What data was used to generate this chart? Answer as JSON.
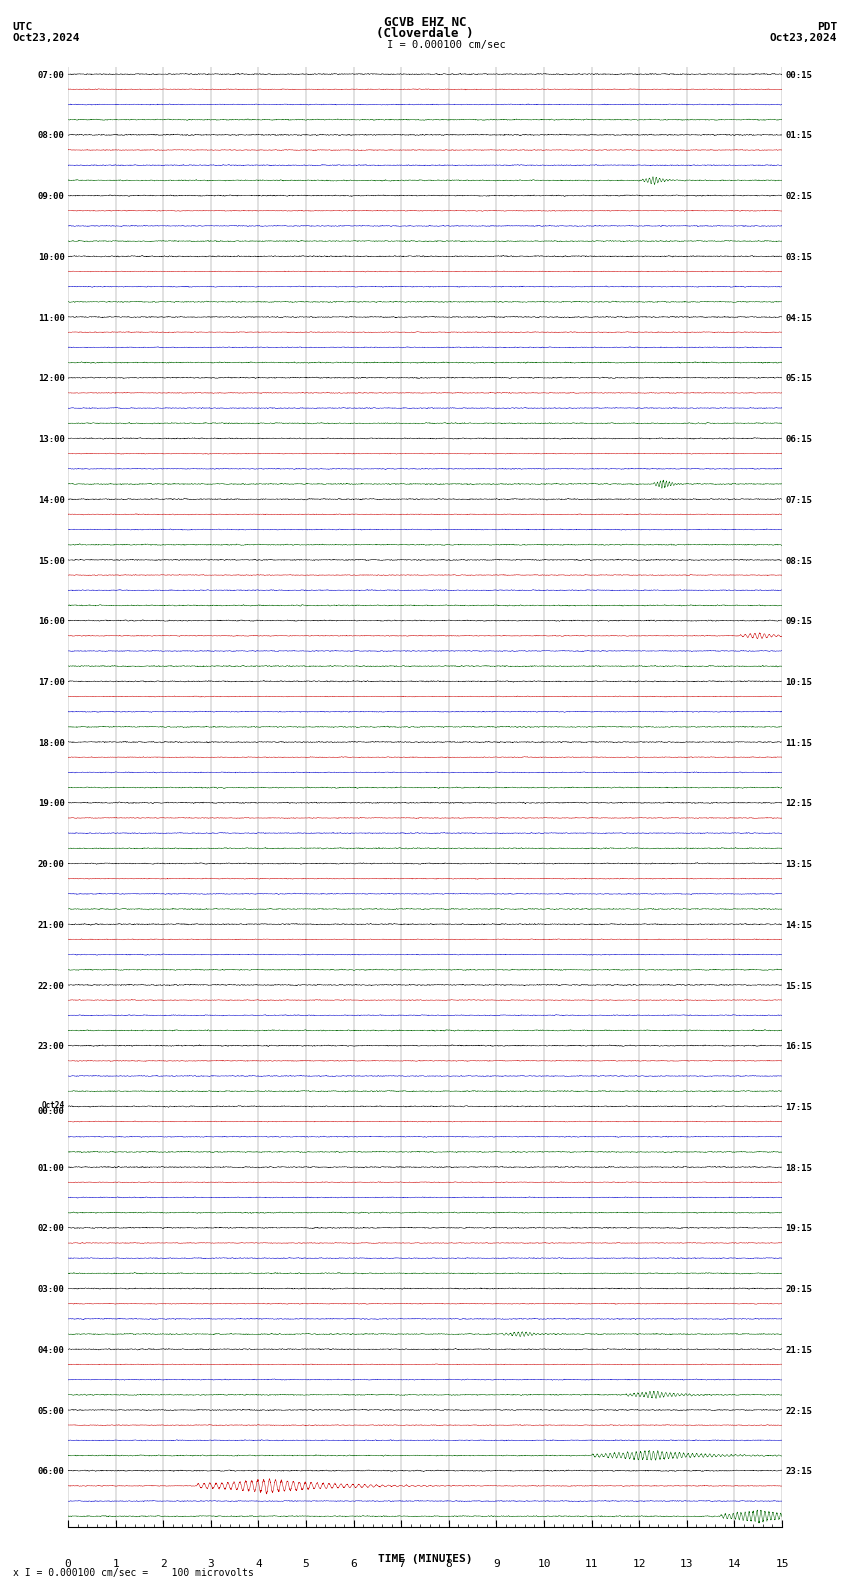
{
  "title_line1": "GCVB EHZ NC",
  "title_line2": "(Cloverdale )",
  "scale_label": "I = 0.000100 cm/sec",
  "left_header": "UTC",
  "left_date": "Oct23,2024",
  "right_header": "PDT",
  "right_date": "Oct23,2024",
  "xlabel": "TIME (MINUTES)",
  "bottom_note": "x I = 0.000100 cm/sec =    100 microvolts",
  "bg_color": "#ffffff",
  "trace_colors": [
    "#000000",
    "#cc0000",
    "#0000cc",
    "#006600"
  ],
  "grid_color": "#555555",
  "time_min": 0,
  "time_max": 15,
  "n_pts": 6000,
  "seed": 42,
  "noise_amp": 0.035,
  "num_rows": 24,
  "utc_labels": [
    "07:00",
    "08:00",
    "09:00",
    "10:00",
    "11:00",
    "12:00",
    "13:00",
    "14:00",
    "15:00",
    "16:00",
    "17:00",
    "18:00",
    "19:00",
    "20:00",
    "21:00",
    "22:00",
    "23:00",
    "Oct24\n00:00",
    "01:00",
    "02:00",
    "03:00",
    "04:00",
    "05:00",
    "06:00"
  ],
  "pdt_labels": [
    "00:15",
    "01:15",
    "02:15",
    "03:15",
    "04:15",
    "05:15",
    "06:15",
    "07:15",
    "08:15",
    "09:15",
    "10:15",
    "11:15",
    "12:15",
    "13:15",
    "14:15",
    "15:15",
    "16:15",
    "17:15",
    "18:15",
    "19:15",
    "20:15",
    "21:15",
    "22:15",
    "23:15"
  ],
  "special_events": [
    {
      "row": 1,
      "sub": 3,
      "time": 12.3,
      "dur": 0.25,
      "amp": 0.55,
      "freq": 14
    },
    {
      "row": 6,
      "sub": 3,
      "time": 12.5,
      "dur": 0.2,
      "amp": 0.65,
      "freq": 16
    },
    {
      "row": 9,
      "sub": 1,
      "time": 14.5,
      "dur": 0.4,
      "amp": 0.45,
      "freq": 10
    },
    {
      "row": 20,
      "sub": 3,
      "time": 9.5,
      "dur": 0.4,
      "amp": 0.35,
      "freq": 12
    },
    {
      "row": 21,
      "sub": 3,
      "time": 12.3,
      "dur": 0.6,
      "amp": 0.5,
      "freq": 12
    },
    {
      "row": 22,
      "sub": 3,
      "time": 12.2,
      "dur": 1.2,
      "amp": 0.7,
      "freq": 11
    },
    {
      "row": 23,
      "sub": 1,
      "time": 4.2,
      "dur": 1.5,
      "amp": 1.0,
      "freq": 8
    },
    {
      "row": 23,
      "sub": 3,
      "time": 14.5,
      "dur": 0.8,
      "amp": 0.9,
      "freq": 12
    }
  ]
}
